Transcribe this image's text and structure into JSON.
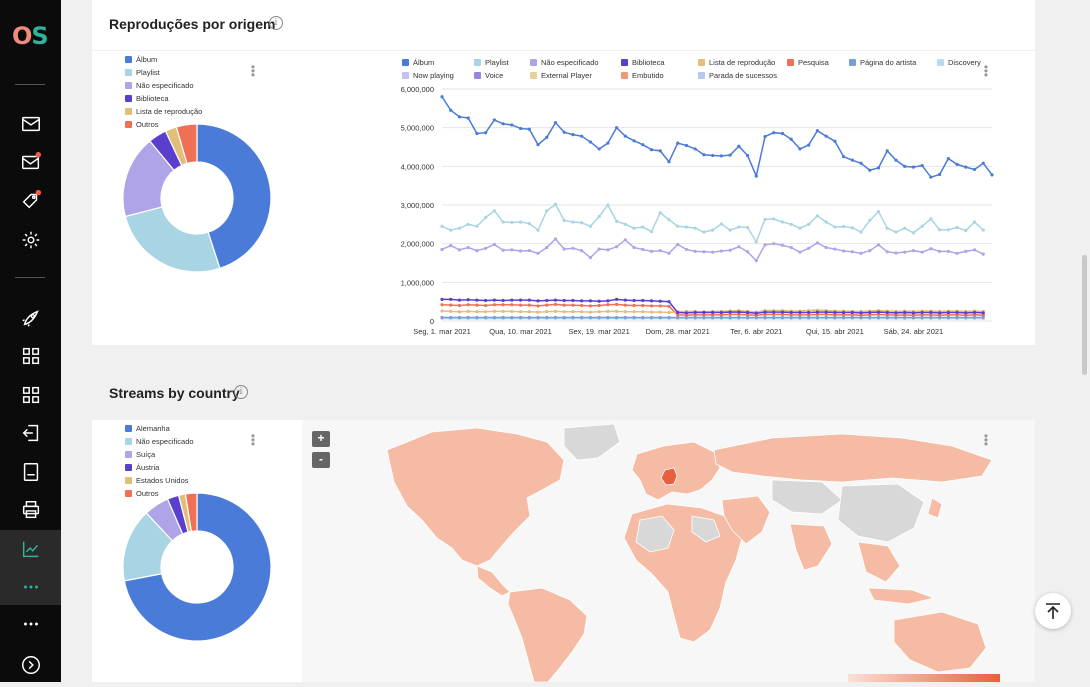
{
  "app": {
    "logo_o": "O",
    "logo_s": "S"
  },
  "sidebar": {
    "items": [
      {
        "icon": "mail-icon"
      },
      {
        "icon": "mail-notification-icon",
        "badge": true
      },
      {
        "icon": "tag-notification-icon",
        "badge": true
      },
      {
        "icon": "gear-icon"
      },
      {
        "icon": "rocket-icon"
      },
      {
        "icon": "grid-icon"
      },
      {
        "icon": "grid-icon"
      },
      {
        "icon": "import-icon"
      },
      {
        "icon": "document-icon"
      },
      {
        "icon": "printer-icon"
      },
      {
        "icon": "analytics-icon",
        "active": true
      },
      {
        "icon": "more-icon",
        "active": true
      },
      {
        "icon": "more-icon"
      },
      {
        "icon": "chevron-right-circle-icon"
      }
    ]
  },
  "section1": {
    "title": "Reproduções por origem",
    "info": "i",
    "donut_legend": [
      {
        "label": "Álbum",
        "color": "#4a7bd8"
      },
      {
        "label": "Playlist",
        "color": "#a8d4e4"
      },
      {
        "label": "Não especificado",
        "color": "#b0a4e8"
      },
      {
        "label": "Biblioteca",
        "color": "#5a3fcf"
      },
      {
        "label": "Lista de reprodução",
        "color": "#e3bd7a"
      },
      {
        "label": "Outros",
        "color": "#ef7055"
      }
    ],
    "line_legend": [
      {
        "label": "Álbum",
        "color": "#4a7bd8"
      },
      {
        "label": "Playlist",
        "color": "#a8d4e4"
      },
      {
        "label": "Não especificado",
        "color": "#b0a4e8"
      },
      {
        "label": "Biblioteca",
        "color": "#5a3fcf"
      },
      {
        "label": "Lista de reprodução",
        "color": "#e3bd7a"
      },
      {
        "label": "Pesquisa",
        "color": "#ef7055"
      },
      {
        "label": "Página do artista",
        "color": "#7a9ed8"
      },
      {
        "label": "Discovery",
        "color": "#b8dcea"
      },
      {
        "label": "Now playing",
        "color": "#c4c0f0"
      },
      {
        "label": "Voice",
        "color": "#9a84dc"
      },
      {
        "label": "External Player",
        "color": "#e6d29a"
      },
      {
        "label": "Embutido",
        "color": "#f09a7a"
      },
      {
        "label": "Parada de sucessos",
        "color": "#b8c8ec"
      }
    ]
  },
  "section2": {
    "title": "Streams by country",
    "info": "i",
    "donut_legend": [
      {
        "label": "Alemanha",
        "color": "#4a7bd8"
      },
      {
        "label": "Não especificado",
        "color": "#a8d4e4"
      },
      {
        "label": "Suíça",
        "color": "#b0a4e8"
      },
      {
        "label": "Áustria",
        "color": "#5a3fcf"
      },
      {
        "label": "Estados Unidos",
        "color": "#e3bd7a"
      },
      {
        "label": "Outros",
        "color": "#ef7055"
      }
    ],
    "map": {
      "zoom_in": "+",
      "zoom_out": "-",
      "land_color": "#f5bba4",
      "highlight_color": "#e8603f",
      "no_data_color": "#d8d8d8"
    }
  },
  "chart_data": [
    {
      "type": "pie",
      "variant": "donut",
      "categories": [
        "Álbum",
        "Playlist",
        "Não especificado",
        "Biblioteca",
        "Lista de reprodução",
        "Outros"
      ],
      "values": [
        45,
        26,
        18,
        4,
        2.5,
        4.5
      ]
    },
    {
      "type": "line",
      "x_tick_labels": [
        "Seg, 1. mar 2021",
        "Qua, 10. mar 2021",
        "Sex, 19. mar 2021",
        "Dom, 28. mar 2021",
        "Ter, 6. abr 2021",
        "Qui, 15. abr 2021",
        "Sáb, 24. abr 2021"
      ],
      "y_tick_labels": [
        "0",
        "1,000,000",
        "2,000,000",
        "3,000,000",
        "4,000,000",
        "5,000,000",
        "6,000,000"
      ],
      "ylim": [
        0,
        6000000
      ],
      "grid": true,
      "x_start": "2021-03-01",
      "series": [
        {
          "name": "Álbum",
          "color": "#4a7bd8",
          "values": [
            5800000,
            5450000,
            5280000,
            5250000,
            4850000,
            4870000,
            5200000,
            5100000,
            5070000,
            4980000,
            4960000,
            4560000,
            4750000,
            5130000,
            4880000,
            4820000,
            4780000,
            4630000,
            4450000,
            4600000,
            5000000,
            4780000,
            4660000,
            4560000,
            4430000,
            4400000,
            4120000,
            4600000,
            4540000,
            4450000,
            4300000,
            4280000,
            4270000,
            4290000,
            4520000,
            4280000,
            3750000,
            4770000,
            4870000,
            4850000,
            4700000,
            4450000,
            4550000,
            4920000,
            4780000,
            4650000,
            4250000,
            4160000,
            4080000,
            3900000,
            3960000,
            4400000,
            4160000,
            4000000,
            3980000,
            4020000,
            3720000,
            3790000,
            4200000,
            4050000,
            3980000,
            3920000,
            4080000,
            3780000
          ]
        },
        {
          "name": "Playlist",
          "color": "#a8d4e4",
          "values": [
            2450000,
            2350000,
            2400000,
            2500000,
            2450000,
            2680000,
            2850000,
            2560000,
            2550000,
            2560000,
            2520000,
            2350000,
            2850000,
            3020000,
            2600000,
            2560000,
            2540000,
            2450000,
            2700000,
            3000000,
            2580000,
            2500000,
            2400000,
            2430000,
            2310000,
            2800000,
            2620000,
            2450000,
            2430000,
            2400000,
            2300000,
            2350000,
            2510000,
            2350000,
            2430000,
            2420000,
            2050000,
            2630000,
            2640000,
            2560000,
            2500000,
            2400000,
            2500000,
            2720000,
            2560000,
            2430000,
            2440000,
            2410000,
            2300000,
            2600000,
            2830000,
            2400000,
            2300000,
            2400000,
            2280000,
            2450000,
            2640000,
            2360000,
            2360000,
            2420000,
            2340000,
            2560000,
            2350000
          ]
        },
        {
          "name": "Não especificado",
          "color": "#b0a4e8",
          "values": [
            1850000,
            1950000,
            1840000,
            1900000,
            1820000,
            1880000,
            1980000,
            1830000,
            1840000,
            1810000,
            1820000,
            1750000,
            1900000,
            2120000,
            1860000,
            1880000,
            1820000,
            1640000,
            1860000,
            1840000,
            1920000,
            2100000,
            1900000,
            1850000,
            1800000,
            1820000,
            1750000,
            1980000,
            1850000,
            1800000,
            1790000,
            1780000,
            1810000,
            1830000,
            1920000,
            1790000,
            1560000,
            1970000,
            2000000,
            1960000,
            1900000,
            1780000,
            1880000,
            2020000,
            1900000,
            1860000,
            1810000,
            1790000,
            1750000,
            1820000,
            1970000,
            1790000,
            1760000,
            1780000,
            1820000,
            1780000,
            1870000,
            1800000,
            1800000,
            1750000,
            1800000,
            1840000,
            1730000
          ]
        },
        {
          "name": "Biblioteca",
          "color": "#5a3fcf",
          "values": [
            560000,
            560000,
            540000,
            550000,
            540000,
            530000,
            540000,
            530000,
            540000,
            540000,
            540000,
            520000,
            530000,
            540000,
            530000,
            530000,
            520000,
            520000,
            510000,
            520000,
            560000,
            540000,
            530000,
            530000,
            520000,
            510000,
            500000,
            220000,
            210000,
            220000,
            220000,
            220000,
            220000,
            230000,
            230000,
            220000,
            200000,
            230000,
            230000,
            230000,
            220000,
            220000,
            220000,
            230000,
            230000,
            220000,
            220000,
            220000,
            210000,
            220000,
            230000,
            220000,
            210000,
            220000,
            210000,
            220000,
            220000,
            210000,
            220000,
            220000,
            210000,
            220000,
            210000
          ]
        },
        {
          "name": "Lista de reprodução",
          "color": "#e3bd7a",
          "values": [
            260000,
            250000,
            240000,
            250000,
            240000,
            240000,
            250000,
            250000,
            250000,
            240000,
            240000,
            230000,
            240000,
            250000,
            240000,
            240000,
            240000,
            230000,
            240000,
            250000,
            250000,
            240000,
            240000,
            240000,
            230000,
            230000,
            220000,
            240000,
            250000,
            250000,
            240000,
            250000,
            250000,
            260000,
            270000,
            250000,
            230000,
            270000,
            270000,
            270000,
            260000,
            260000,
            270000,
            280000,
            270000,
            260000,
            260000,
            250000,
            250000,
            260000,
            270000,
            260000,
            250000,
            260000,
            250000,
            260000,
            260000,
            250000,
            260000,
            260000,
            250000,
            260000,
            250000
          ]
        },
        {
          "name": "Pesquisa",
          "color": "#ef7055",
          "values": [
            420000,
            410000,
            400000,
            420000,
            410000,
            400000,
            420000,
            420000,
            420000,
            410000,
            410000,
            390000,
            410000,
            430000,
            410000,
            410000,
            400000,
            390000,
            400000,
            420000,
            430000,
            410000,
            400000,
            400000,
            390000,
            390000,
            380000,
            160000,
            150000,
            160000,
            160000,
            160000,
            160000,
            170000,
            170000,
            160000,
            150000,
            170000,
            170000,
            170000,
            160000,
            160000,
            160000,
            170000,
            170000,
            160000,
            160000,
            160000,
            150000,
            160000,
            170000,
            160000,
            150000,
            160000,
            150000,
            160000,
            160000,
            150000,
            160000,
            160000,
            150000,
            160000,
            150000
          ]
        },
        {
          "name": "Página do artista",
          "color": "#7a9ed8",
          "values": [
            90000,
            90000,
            90000,
            90000,
            90000,
            90000,
            90000,
            90000,
            90000,
            90000,
            90000,
            90000,
            90000,
            90000,
            90000,
            90000,
            90000,
            90000,
            90000,
            90000,
            90000,
            90000,
            90000,
            90000,
            90000,
            90000,
            90000,
            90000,
            90000,
            90000,
            90000,
            90000,
            90000,
            90000,
            90000,
            90000,
            90000,
            90000,
            90000,
            90000,
            90000,
            90000,
            90000,
            90000,
            90000,
            90000,
            90000,
            90000,
            90000,
            90000,
            90000,
            90000,
            90000,
            90000,
            90000,
            90000,
            90000,
            90000,
            90000,
            90000,
            90000,
            90000,
            90000
          ]
        },
        {
          "name": "Discovery",
          "color": "#b8dcea",
          "values": [
            60000,
            60000,
            60000,
            60000,
            60000,
            60000,
            60000,
            60000,
            60000,
            60000,
            60000,
            60000,
            60000,
            60000,
            60000,
            60000,
            60000,
            60000,
            60000,
            60000,
            60000,
            60000,
            60000,
            60000,
            60000,
            60000,
            60000,
            60000,
            60000,
            60000,
            60000,
            60000,
            60000,
            60000,
            60000,
            60000,
            60000,
            60000,
            60000,
            60000,
            60000,
            60000,
            60000,
            60000,
            60000,
            60000,
            60000,
            60000,
            60000,
            60000,
            60000,
            60000,
            60000,
            60000,
            60000,
            60000,
            60000,
            60000,
            60000,
            60000,
            60000,
            60000,
            60000
          ]
        }
      ]
    },
    {
      "type": "pie",
      "variant": "donut",
      "categories": [
        "Alemanha",
        "Não especificado",
        "Suíça",
        "Áustria",
        "Estados Unidos",
        "Outros"
      ],
      "values": [
        72,
        16,
        5.5,
        2.5,
        1.5,
        2.5
      ]
    }
  ]
}
